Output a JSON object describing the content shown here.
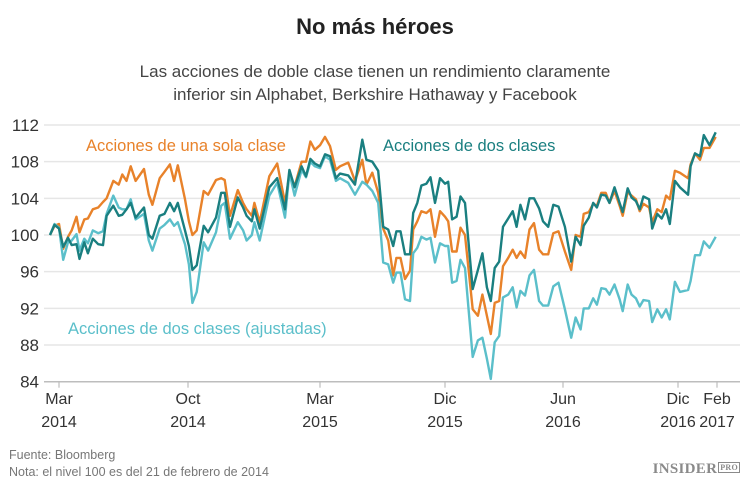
{
  "chart_data": {
    "type": "line",
    "title": "No más héroes",
    "subtitle_lines": [
      "Las acciones de doble clase tienen un rendimiento claramente",
      "inferior sin Alphabet, Berkshire Hathaway y Facebook"
    ],
    "xlabel": "",
    "ylabel": "",
    "ylim": [
      84,
      112
    ],
    "yticks": [
      84,
      88,
      92,
      96,
      100,
      104,
      108,
      112
    ],
    "xticks": [
      {
        "date": "2014-03-01",
        "label": [
          "Mar",
          "2014"
        ]
      },
      {
        "date": "2014-10-01",
        "label": [
          "Oct",
          "2014"
        ]
      },
      {
        "date": "2015-03-01",
        "label": [
          "Mar",
          "2015"
        ]
      },
      {
        "date": "2015-12-01",
        "label": [
          "Dic",
          "2015"
        ]
      },
      {
        "date": "2016-06-01",
        "label": [
          "Jun",
          "2016"
        ]
      },
      {
        "date": "2016-12-01",
        "label": [
          "Dic",
          "2016"
        ]
      },
      {
        "date": "2017-02-01",
        "label": [
          "Feb",
          "2017"
        ]
      }
    ],
    "grid": true,
    "x": [
      "2014-02-21",
      "2014-02-25",
      "2014-03-01",
      "2014-03-08",
      "2014-03-16",
      "2014-03-22",
      "2014-03-30",
      "2014-04-04",
      "2014-04-12",
      "2014-04-18",
      "2014-04-26",
      "2014-05-05",
      "2014-05-13",
      "2014-05-19",
      "2014-05-30",
      "2014-06-08",
      "2014-06-14",
      "2014-06-21",
      "2014-06-28",
      "2014-07-06",
      "2014-07-20",
      "2014-07-28",
      "2014-08-03",
      "2014-08-15",
      "2014-08-23",
      "2014-09-01",
      "2014-09-08",
      "2014-09-14",
      "2014-09-26",
      "2014-10-02",
      "2014-10-06",
      "2014-10-11",
      "2014-10-19",
      "2014-10-24",
      "2014-11-02",
      "2014-11-08",
      "2014-11-12",
      "2014-11-18",
      "2014-11-27",
      "2014-12-03",
      "2014-12-07",
      "2014-12-13",
      "2014-12-16",
      "2014-12-22",
      "2015-01-02",
      "2015-01-11",
      "2015-01-20",
      "2015-01-25",
      "2015-01-31",
      "2015-02-08",
      "2015-02-13",
      "2015-02-18",
      "2015-02-23",
      "2015-03-01",
      "2015-03-12",
      "2015-03-23",
      "2015-04-05",
      "2015-04-14",
      "2015-05-02",
      "2015-05-17",
      "2015-06-02",
      "2015-06-11",
      "2015-06-24",
      "2015-07-07",
      "2015-07-18",
      "2015-07-29",
      "2015-08-09",
      "2015-08-16",
      "2015-08-25",
      "2015-09-04",
      "2015-09-15",
      "2015-09-22",
      "2015-10-01",
      "2015-10-10",
      "2015-10-21",
      "2015-10-30",
      "2015-11-09",
      "2015-11-20",
      "2015-12-01",
      "2015-12-06",
      "2015-12-12",
      "2015-12-19",
      "2015-12-25",
      "2016-01-01",
      "2016-01-13",
      "2016-01-21",
      "2016-01-28",
      "2016-02-04",
      "2016-02-10",
      "2016-02-16",
      "2016-02-23",
      "2016-02-29",
      "2016-03-08",
      "2016-03-15",
      "2016-03-21",
      "2016-03-27",
      "2016-04-03",
      "2016-04-10",
      "2016-04-17",
      "2016-04-25",
      "2016-05-01",
      "2016-05-09",
      "2016-05-17",
      "2016-05-25",
      "2016-06-04",
      "2016-06-14",
      "2016-06-21",
      "2016-06-29",
      "2016-07-04",
      "2016-07-12",
      "2016-07-19",
      "2016-07-25",
      "2016-08-01",
      "2016-08-08",
      "2016-08-14",
      "2016-08-22",
      "2016-08-30",
      "2016-09-04",
      "2016-09-12",
      "2016-09-18",
      "2016-09-25",
      "2016-10-01",
      "2016-10-07",
      "2016-10-16",
      "2016-10-21",
      "2016-10-29",
      "2016-11-05",
      "2016-11-12",
      "2016-11-18",
      "2016-11-26",
      "2016-12-04",
      "2016-12-17",
      "2016-12-21",
      "2016-12-28",
      "2017-01-05",
      "2017-01-11",
      "2017-01-20",
      "2017-01-30"
    ],
    "series": [
      {
        "name": "Acciones de una sola clase",
        "color": "#e8822a",
        "values": [
          100,
          101,
          101.2,
          98.5,
          99.8,
          100.5,
          102,
          100.3,
          101.7,
          101.8,
          102.8,
          103,
          103.6,
          104,
          105.9,
          105.5,
          106.6,
          105.9,
          107.5,
          105.9,
          107.2,
          104.4,
          103.3,
          106.2,
          106.9,
          107.7,
          105.9,
          107.6,
          103.9,
          101.5,
          100,
          100.5,
          104.8,
          104.4,
          106,
          106.2,
          106,
          102.1,
          104.9,
          103.5,
          102.8,
          102.1,
          103.5,
          101.4,
          106.4,
          107.8,
          103.5,
          106.6,
          105.3,
          108,
          108,
          110.2,
          109.3,
          109.8,
          110.7,
          109.7,
          107.1,
          107.5,
          107.9,
          105.9,
          108.2,
          105.5,
          106.8,
          104.6,
          100.7,
          99.4,
          95.6,
          97.5,
          97.5,
          95.2,
          96.1,
          100.6,
          101.5,
          102.6,
          102.4,
          102.8,
          99.8,
          102.6,
          102,
          101.5,
          98.2,
          98.2,
          100.8,
          100,
          91.9,
          91.2,
          93.5,
          91.2,
          89.2,
          92.6,
          92.8,
          96.6,
          97.5,
          98.4,
          97.5,
          98.2,
          97.5,
          100.6,
          101.3,
          98.4,
          97.9,
          97.9,
          100.2,
          100.4,
          98.2,
          96.2,
          100,
          99.8,
          102.3,
          102.5,
          103.4,
          103.2,
          104.6,
          104.6,
          103.5,
          104.8,
          103.2,
          102.1,
          104.7,
          104.3,
          103.9,
          102.6,
          103.4,
          103,
          101.4,
          102.8,
          102.5,
          104.3,
          103.9,
          107,
          106.8,
          106.2,
          107.7,
          108.9,
          108.2,
          109.5,
          109.5,
          110.7
        ]
      },
      {
        "name": "Acciones de dos clases",
        "color": "#1a7f80",
        "values": [
          100,
          101.1,
          100.7,
          98.7,
          99.7,
          98.9,
          99,
          97.4,
          99.2,
          98,
          99.6,
          99,
          98.9,
          102.1,
          103.2,
          102.1,
          102.2,
          102.8,
          103.5,
          101.9,
          103,
          100,
          99.6,
          102.1,
          102.3,
          103.5,
          102.6,
          103.5,
          100.5,
          98.8,
          96.2,
          96.7,
          101,
          100.3,
          101.9,
          104.6,
          104.6,
          100.9,
          104.1,
          103,
          102.1,
          101.5,
          102.8,
          100.7,
          105.2,
          106.2,
          102.8,
          107.1,
          105.2,
          107.5,
          106.4,
          108.3,
          107.8,
          107.5,
          108.8,
          108.6,
          106.2,
          106.7,
          106.5,
          105.5,
          110.4,
          108.2,
          108,
          107,
          100.9,
          100.6,
          98.8,
          100.4,
          100.4,
          97.9,
          97.9,
          102.4,
          103.5,
          105.4,
          105.6,
          106.3,
          103.5,
          106.2,
          105.6,
          105.8,
          101.7,
          102,
          104.2,
          103.5,
          94.1,
          96.2,
          98,
          94.3,
          92.8,
          96.4,
          97.1,
          100.9,
          101.8,
          102.6,
          100.9,
          103.3,
          101.7,
          104,
          104,
          102.9,
          101.5,
          100.9,
          103.3,
          103.1,
          100.9,
          97.1,
          99.8,
          98.9,
          101,
          101.9,
          103.5,
          103,
          104.4,
          104.3,
          103.5,
          105.2,
          103.5,
          102.5,
          105.1,
          104.1,
          103.7,
          102.8,
          104.2,
          103.9,
          100.7,
          102.3,
          101.8,
          102.8,
          101.2,
          105.9,
          105.2,
          104.4,
          107.5,
          108.9,
          108.6,
          110.9,
          109.8,
          111.2
        ]
      },
      {
        "name": "Acciones de dos clases (ajustadas)",
        "color": "#5bbfca",
        "values": [
          100,
          101.2,
          100.8,
          97.3,
          99.2,
          99.4,
          100.1,
          98.3,
          99.6,
          99.1,
          100.5,
          100.2,
          100.4,
          102.3,
          104.3,
          103,
          102.8,
          102.8,
          103.9,
          101.7,
          102.3,
          99.4,
          98.3,
          100.7,
          101.1,
          101.7,
          101,
          101.4,
          99,
          96.8,
          92.6,
          93.8,
          99.2,
          98.3,
          100.3,
          103.2,
          103.5,
          99.6,
          101.4,
          100.5,
          99.4,
          100,
          101.4,
          99.4,
          104.3,
          105.7,
          101.9,
          106.8,
          104.3,
          107.1,
          106.3,
          108,
          107.5,
          107.3,
          108.6,
          108.2,
          105.9,
          106.2,
          105.7,
          104.4,
          105.8,
          105.5,
          104.8,
          103.5,
          97,
          96.8,
          94.8,
          95.9,
          95.9,
          93,
          92.8,
          98,
          98.6,
          99.8,
          99.5,
          99.7,
          97,
          99.1,
          98.8,
          98.8,
          94.8,
          95,
          97.3,
          96.4,
          86.7,
          88.5,
          88.8,
          86.5,
          84.3,
          88.3,
          89,
          93.2,
          93.5,
          94.3,
          92.1,
          93.9,
          93.4,
          95.6,
          96.2,
          92.8,
          92.3,
          92.3,
          94.4,
          94.8,
          91.9,
          88.8,
          91,
          89.7,
          92,
          92,
          93.1,
          92.4,
          94.2,
          94.1,
          93.5,
          94.6,
          93,
          91.7,
          94.6,
          93.5,
          93.1,
          92.2,
          92.9,
          92.8,
          90.5,
          91.9,
          91,
          91.9,
          90.8,
          94.9,
          93.8,
          94,
          95,
          97.8,
          97.8,
          99.3,
          98.6,
          99.8
        ]
      }
    ]
  },
  "footer": {
    "source": "Fuente: Bloomberg",
    "note": "Nota: el nivel 100 es del 21 de febrero de 2014"
  },
  "logo": {
    "text": "INSIDER",
    "badge": "PRO"
  }
}
